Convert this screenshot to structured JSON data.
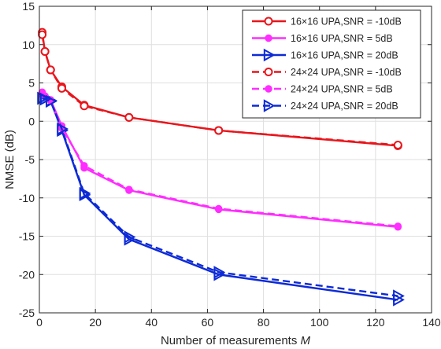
{
  "chart_data": {
    "type": "line",
    "title": "",
    "xlabel": "Number of measurements M",
    "xlabel_main": "Number of measurements ",
    "xlabel_var": "M",
    "ylabel": "NMSE (dB)",
    "xlim": [
      0,
      140
    ],
    "ylim": [
      -25,
      15
    ],
    "xticks": [
      0,
      20,
      40,
      60,
      80,
      100,
      120,
      140
    ],
    "yticks": [
      -25,
      -20,
      -15,
      -10,
      -5,
      0,
      5,
      10,
      15
    ],
    "grid": true,
    "legend_position": "top-right",
    "x": [
      1,
      2,
      4,
      8,
      16,
      32,
      64,
      128
    ],
    "series": [
      {
        "name": "16×16 UPA,SNR = -10dB",
        "color": "#e8161c",
        "marker": "circle",
        "dash": "solid",
        "values": [
          11.6,
          9.1,
          6.7,
          4.5,
          2.1,
          0.5,
          -1.2,
          -3.2
        ]
      },
      {
        "name": "16×16 UPA,SNR = 5dB",
        "color": "#ff2dff",
        "marker": "dot",
        "dash": "solid",
        "values": [
          3.8,
          3.3,
          2.8,
          -0.6,
          -6.1,
          -9.0,
          -11.5,
          -13.8
        ]
      },
      {
        "name": "16×16 UPA,SNR = 20dB",
        "color": "#0d2ad6",
        "marker": "triangle-right",
        "dash": "solid",
        "values": [
          3.0,
          2.9,
          2.7,
          -1.2,
          -9.6,
          -15.4,
          -20.0,
          -23.3
        ]
      },
      {
        "name": "24×24 UPA,SNR = -10dB",
        "color": "#e8161c",
        "marker": "circle",
        "dash": "dashed",
        "values": [
          11.3,
          9.1,
          6.7,
          4.3,
          2.0,
          0.5,
          -1.2,
          -3.1
        ]
      },
      {
        "name": "24×24 UPA,SNR = 5dB",
        "color": "#ff2dff",
        "marker": "dot",
        "dash": "dashed",
        "values": [
          3.5,
          3.2,
          2.7,
          -0.9,
          -5.8,
          -8.9,
          -11.4,
          -13.7
        ]
      },
      {
        "name": "24×24 UPA,SNR = 20dB",
        "color": "#0d2ad6",
        "marker": "triangle-right",
        "dash": "dashed",
        "values": [
          3.0,
          2.9,
          2.6,
          -1.0,
          -9.4,
          -15.1,
          -19.7,
          -22.8
        ]
      }
    ]
  }
}
